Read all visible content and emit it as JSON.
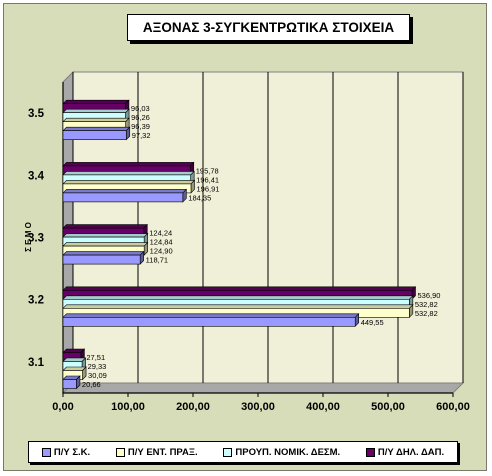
{
  "chart_data": {
    "type": "bar",
    "orientation": "horizontal",
    "title": "ΑΞΟΝΑΣ 3-ΣΥΓΚΕΝΤΡΩΤΙΚΑ ΣΤΟΙΧΕΙΑ",
    "ylabel": "Σ Ε Μ Ο",
    "xlabel": "",
    "categories": [
      "3.1",
      "3.2",
      "3.3",
      "3.4",
      "3.5"
    ],
    "xlim": [
      0,
      600
    ],
    "xticks": [
      "0,00",
      "100,00",
      "200,00",
      "300,00",
      "400,00",
      "500,00",
      "600,00"
    ],
    "grid": "vertical",
    "legend_position": "bottom",
    "series": [
      {
        "name": "Π/Υ Σ.Κ.",
        "color": "#9999ff",
        "values": [
          20.66,
          449.55,
          118.71,
          184.35,
          97.32
        ],
        "labels": [
          "20,66",
          "449,55",
          "118,71",
          "184,35",
          "97,32"
        ]
      },
      {
        "name": "Π/Υ ΕΝΤ. ΠΡΑΞ.",
        "color": "#ffffcc",
        "values": [
          30.09,
          532.82,
          124.9,
          196.91,
          96.39
        ],
        "labels": [
          "30,09",
          "532,82",
          "124,90",
          "196,91",
          "96,39"
        ]
      },
      {
        "name": "ΠΡΟΥΠ. ΝΟΜΙΚ. ΔΕΣΜ.",
        "color": "#ccffff",
        "values": [
          29.33,
          532.82,
          124.84,
          196.41,
          96.26
        ],
        "labels": [
          "29,33",
          "532,82",
          "124,84",
          "196,41",
          "96,26"
        ]
      },
      {
        "name": "Π/Υ ΔΗΛ. ΔΑΠ.",
        "color": "#660066",
        "values": [
          27.51,
          536.9,
          124.24,
          195.78,
          96.03
        ],
        "labels": [
          "27,51",
          "536,90",
          "124,24",
          "195,78",
          "96,03"
        ]
      }
    ]
  }
}
